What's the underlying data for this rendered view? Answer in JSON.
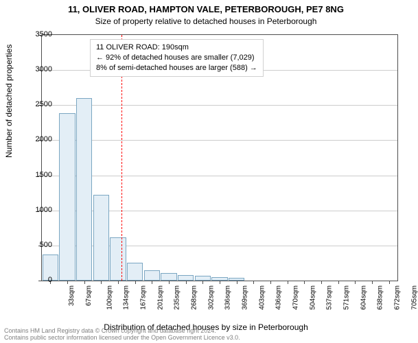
{
  "title": "11, OLIVER ROAD, HAMPTON VALE, PETERBOROUGH, PE7 8NG",
  "subtitle": "Size of property relative to detached houses in Peterborough",
  "yAxisLabel": "Number of detached properties",
  "xAxisLabel": "Distribution of detached houses by size in Peterborough",
  "chart": {
    "type": "bar",
    "ylim": [
      0,
      3500
    ],
    "ytick_step": 500,
    "categories": [
      "33sqm",
      "67sqm",
      "100sqm",
      "134sqm",
      "167sqm",
      "201sqm",
      "235sqm",
      "268sqm",
      "302sqm",
      "336sqm",
      "369sqm",
      "403sqm",
      "436sqm",
      "470sqm",
      "504sqm",
      "537sqm",
      "571sqm",
      "604sqm",
      "638sqm",
      "672sqm",
      "705sqm"
    ],
    "values": [
      370,
      2390,
      2600,
      1220,
      620,
      250,
      150,
      110,
      80,
      70,
      50,
      40,
      0,
      0,
      0,
      0,
      0,
      0,
      0,
      0,
      0
    ],
    "bar_fill": "#e3eef6",
    "bar_border": "#7aa6c2",
    "grid_color": "#cccccc",
    "axis_color": "#4d4d4d",
    "background_color": "#ffffff",
    "bar_width_ratio": 0.95
  },
  "marker": {
    "position_index_fractional": 4.71,
    "line_color": "#ff0000"
  },
  "annotation": {
    "line1": "11 OLIVER ROAD: 190sqm",
    "line2": "← 92% of detached houses are smaller (7,029)",
    "line3": "8% of semi-detached houses are larger (588) →"
  },
  "footer": {
    "line1": "Contains HM Land Registry data © Crown copyright and database right 2024.",
    "line2": "Contains public sector information licensed under the Open Government Licence v3.0."
  },
  "style": {
    "title_fontsize": 13,
    "subtitle_fontsize": 12,
    "label_fontsize": 12,
    "tick_fontsize": 11,
    "xtick_fontsize": 10,
    "annotation_fontsize": 11,
    "footer_fontsize": 9,
    "footer_color": "#808080"
  }
}
